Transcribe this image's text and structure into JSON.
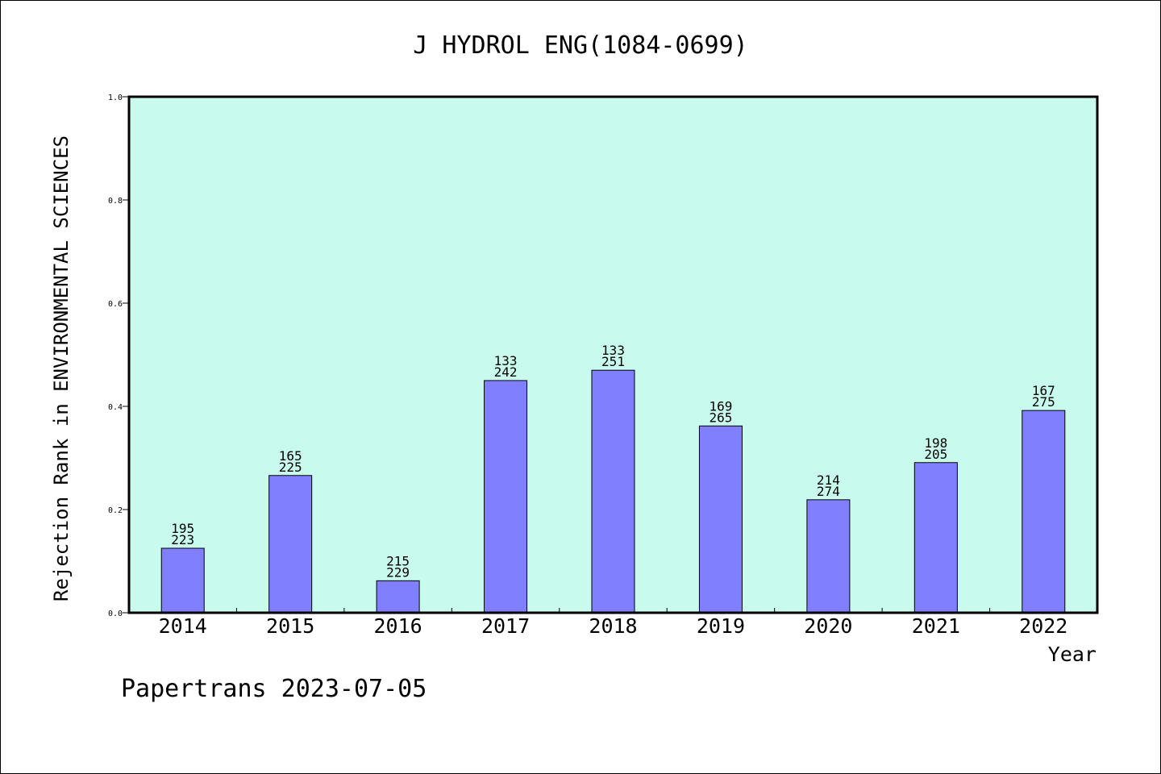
{
  "chart_data": {
    "type": "bar",
    "title": "J HYDROL ENG(1084-0699)",
    "ylabel": "Rejection Rank in ENVIRONMENTAL SCIENCES",
    "xlabel": "Year",
    "categories": [
      "2014",
      "2015",
      "2016",
      "2017",
      "2018",
      "2019",
      "2020",
      "2021",
      "2022"
    ],
    "values": [
      0.125,
      0.266,
      0.062,
      0.45,
      0.47,
      0.362,
      0.219,
      0.291,
      0.392
    ],
    "labels_top": [
      "195",
      "165",
      "215",
      "133",
      "133",
      "169",
      "214",
      "198",
      "167"
    ],
    "labels_bottom": [
      "223",
      "225",
      "229",
      "242",
      "251",
      "265",
      "274",
      "205",
      "275"
    ],
    "ylim": [
      0,
      1.0
    ],
    "yticks": [
      "0.0",
      "0.2",
      "0.4",
      "0.6",
      "0.8",
      "1.0"
    ],
    "grid": false,
    "colors": {
      "plot_background": "#c8fbee",
      "bar": "#8080ff"
    }
  },
  "footer": "Papertrans 2023-07-05"
}
